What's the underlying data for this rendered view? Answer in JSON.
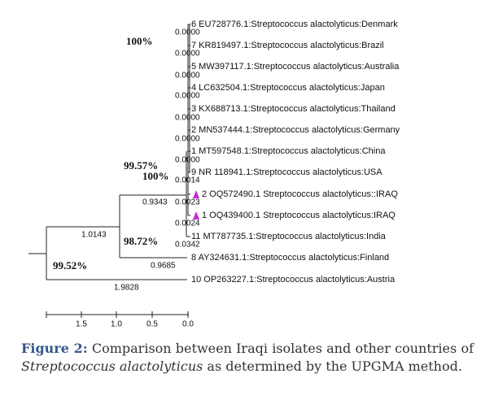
{
  "tree": {
    "leaves": [
      "6 EU728776.1:Streptococcus alactolyticus:Denmark",
      "7 KR819497.1:Streptococcus alactolyticus:Brazil",
      "5 MW397117.1:Streptococcus alactolyticus:Australia",
      "4 LC632504.1:Streptococcus alactolyticus:Japan",
      "3 KX688713.1:Streptococcus alactolyticus:Thailand",
      "2 MN537444.1:Streptococcus alactolyticus:Germany",
      "1 MT597548.1:Streptococcus alactolyticus:China",
      "9 NR 118941.1:Streptococcus alactolyticus:USA",
      "2 OQ572490.1 Streptococcus alactolyticus::IRAQ",
      "1 OQ439400.1 Streptococcus alactolyticus:IRAQ",
      "11 MT787735.1:Streptococcus alactolyticus:India",
      "8 AY324631.1:Streptococcus alactolyticus:Finland",
      "10 OP263227.1:Streptococcus alactolyticus:Austria"
    ],
    "branch_lengths": [
      "0.0000",
      "0.0000",
      "0.0000",
      "0.0000",
      "0.0000",
      "0.0000",
      "0.0000",
      "0.0014",
      "0.0023",
      "0.0024",
      "0.0342",
      "0.9343",
      "1.0143",
      "0.9685",
      "1.9828"
    ],
    "support": [
      "100%",
      "99.57%",
      "100%",
      "98.72%",
      "99.52%"
    ],
    "scale_ticks": [
      "1.5",
      "1.0",
      "0.5",
      "0.0"
    ]
  },
  "caption": {
    "label": "Figure 2:",
    "text_before": " Comparison between Iraqi isolates and other countries of ",
    "species": "Streptococcus alactolyticus",
    "text_after": " as determined by the UPGMA method."
  }
}
